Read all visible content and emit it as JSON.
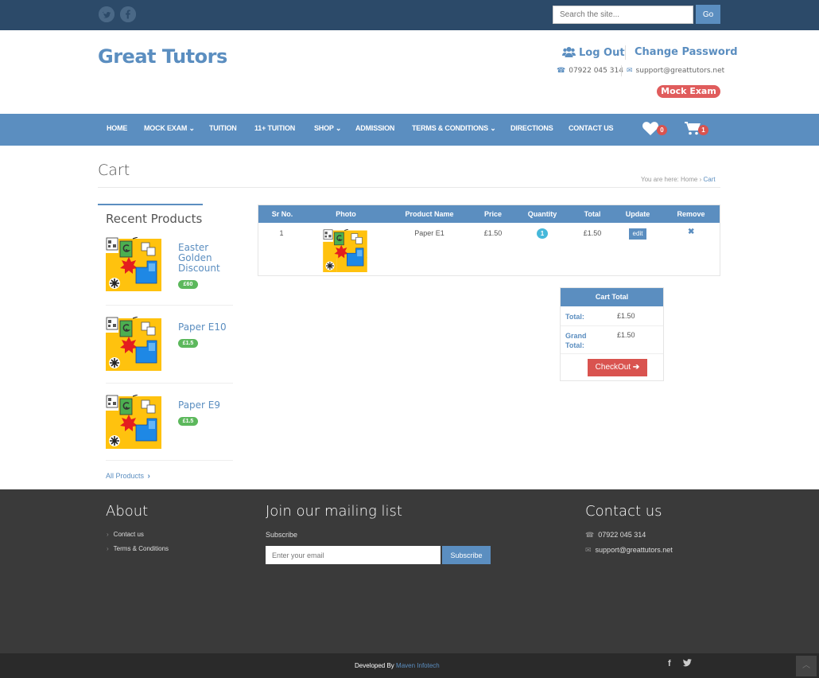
{
  "topbar": {
    "social": [
      "twitter-icon",
      "facebook-icon"
    ],
    "search_placeholder": "Search the site...",
    "search_button": "Go"
  },
  "header": {
    "logo": "Great Tutors",
    "logout": "Log Out",
    "change_password": "Change Password",
    "phone": "07922 045 314",
    "email": "support@greattutors.net",
    "mock_exam": "Mock Exam"
  },
  "nav": {
    "items": [
      "HOME",
      "MOCK EXAM ⌄",
      "TUITION",
      "11+ TUITION",
      "SHOP ⌄",
      "ADMISSION",
      "TERMS & CONDITIONS ⌄",
      "DIRECTIONS",
      "CONTACT US"
    ],
    "wishlist_count": "0",
    "cart_count": "1"
  },
  "page": {
    "title": "Cart",
    "breadcrumb_prefix": "You are here:",
    "breadcrumb_home": "Home",
    "breadcrumb_sep": "›",
    "breadcrumb_current": "Cart"
  },
  "sidebar": {
    "title": "Recent Products",
    "products": [
      {
        "name": "Easter Golden Discount",
        "price": "£60"
      },
      {
        "name": "Paper E10",
        "price": "£1.5"
      },
      {
        "name": "Paper E9",
        "price": "£1.5"
      }
    ],
    "all_products": "All Products"
  },
  "cart": {
    "headers": [
      "Sr No.",
      "Photo",
      "Product Name",
      "Price",
      "Quantity",
      "Total",
      "Update",
      "Remove"
    ],
    "rows": [
      {
        "sr": "1",
        "name": "Paper E1",
        "price": "£1.50",
        "qty": "1",
        "total": "£1.50",
        "edit": "edit"
      }
    ]
  },
  "cart_total": {
    "title": "Cart Total",
    "total_label": "Total:",
    "total_value": "£1.50",
    "grand_label": "Grand Total:",
    "grand_value": "£1.50",
    "checkout": "CheckOut"
  },
  "footer": {
    "about_title": "About",
    "about_links": [
      "Contact us",
      "Terms & Conditions"
    ],
    "mailing_title": "Join our mailing list",
    "subscribe_label": "Subscribe",
    "email_placeholder": "Enter your email",
    "subscribe_button": "Subscribe",
    "contact_title": "Contact us",
    "phone": "07922 045 314",
    "email": "support@greattutors.net",
    "developed_by": "Developed By",
    "developer": "Maven Infotech"
  },
  "colors": {
    "primary": "#5b8ec0",
    "topbar": "#2c4a69",
    "danger": "#d9534f",
    "success": "#5cb85c",
    "footer": "#3a3a3a"
  }
}
